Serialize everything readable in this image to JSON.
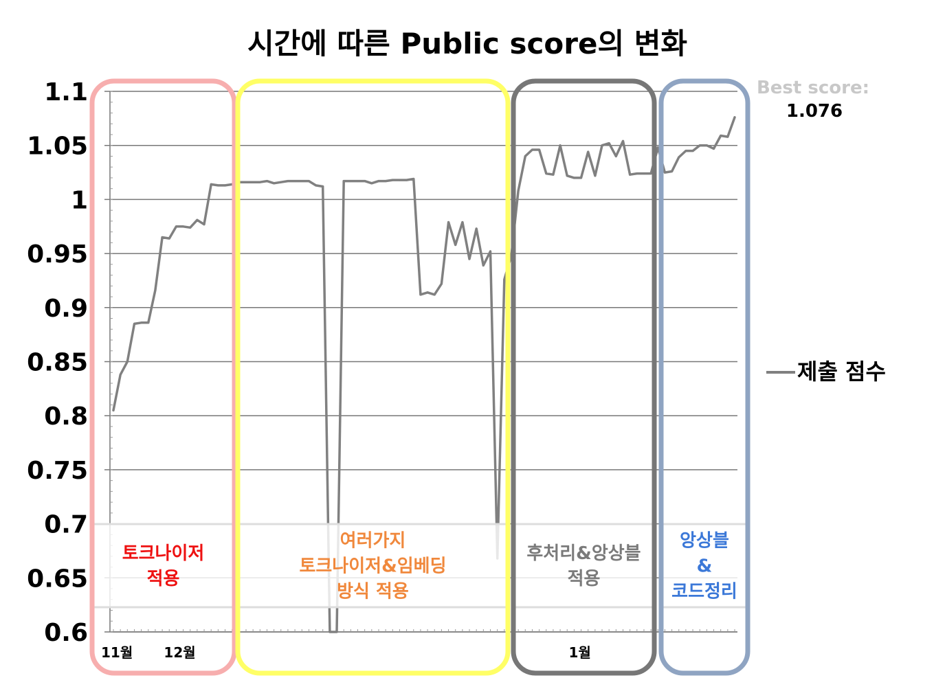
{
  "chart_data": {
    "type": "line",
    "title": "시간에 따른 Public score의 변화",
    "xlabel": "",
    "ylabel": "",
    "ylim": [
      0.6,
      1.1
    ],
    "yticks": [
      "0.6",
      "0.65",
      "0.7",
      "0.75",
      "0.8",
      "0.85",
      "0.9",
      "0.95",
      "1",
      "1.05",
      "1.1"
    ],
    "x_tick_labels": [
      {
        "label": "11월",
        "index": 0
      },
      {
        "label": "12월",
        "index": 9
      },
      {
        "label": "1월",
        "index": 67
      }
    ],
    "grid": true,
    "legend_position": "right",
    "series": [
      {
        "name": "제출 점수",
        "color": "#808080",
        "values": [
          0.805,
          0.838,
          0.85,
          0.885,
          0.886,
          0.886,
          0.916,
          0.965,
          0.964,
          0.975,
          0.975,
          0.974,
          0.981,
          0.977,
          1.014,
          1.013,
          1.013,
          1.014,
          1.016,
          1.016,
          1.016,
          1.016,
          1.017,
          1.015,
          1.016,
          1.017,
          1.017,
          1.017,
          1.017,
          1.013,
          1.012,
          0.6,
          0.6,
          1.017,
          1.017,
          1.017,
          1.017,
          1.015,
          1.017,
          1.017,
          1.018,
          1.018,
          1.018,
          1.019,
          0.912,
          0.914,
          0.912,
          0.922,
          0.979,
          0.958,
          0.979,
          0.945,
          0.973,
          0.939,
          0.952,
          0.668,
          0.926,
          0.948,
          1.008,
          1.04,
          1.046,
          1.046,
          1.024,
          1.023,
          1.05,
          1.022,
          1.02,
          1.02,
          1.044,
          1.022,
          1.05,
          1.052,
          1.04,
          1.054,
          1.023,
          1.024,
          1.024,
          1.024,
          1.048,
          1.025,
          1.026,
          1.039,
          1.045,
          1.045,
          1.05,
          1.05,
          1.047,
          1.059,
          1.058,
          1.076
        ]
      }
    ],
    "best_score": {
      "label": "Best score:",
      "value": "1.076"
    },
    "phases": [
      {
        "label_lines": [
          "토크나이저",
          "적용"
        ],
        "border_color": "#f7aeae",
        "text_color": "#ee1111",
        "start": 0,
        "end": 14
      },
      {
        "label_lines": [
          "여러가지",
          "토크나이저&임베딩",
          "방식 적용"
        ],
        "border_color": "#ffff66",
        "text_color": "#f0883c",
        "start": 15,
        "end": 56
      },
      {
        "label_lines": [
          "후처리&앙상블",
          "적용"
        ],
        "border_color": "#777777",
        "text_color": "#7a7a7a",
        "start": 56,
        "end": 76
      },
      {
        "label_lines": [
          "앙상블",
          "&",
          "코드정리"
        ],
        "border_color": "#8fa4c2",
        "text_color": "#3b78d8",
        "start": 76,
        "end": 89
      }
    ]
  }
}
